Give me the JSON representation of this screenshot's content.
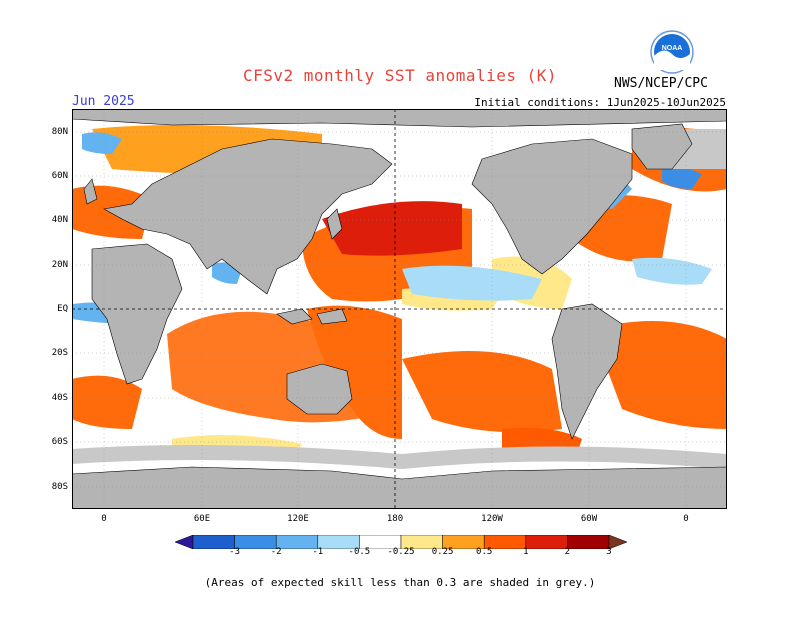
{
  "title": "CFSv2 monthly SST anomalies (K)",
  "month_label": "Jun 2025",
  "initial_conditions": "Initial conditions: 1Jun2025-10Jun2025",
  "agency": "NWS/NCEP/CPC",
  "logo_text": "NOAA",
  "footnote": "(Areas of expected skill less than 0.3 are shaded in grey.)",
  "latitude_labels": [
    "80N",
    "60N",
    "40N",
    "20N",
    "EQ",
    "20S",
    "40S",
    "60S",
    "80S"
  ],
  "longitude_labels": [
    "0",
    "60E",
    "120E",
    "180",
    "120W",
    "60W",
    "0"
  ],
  "colorbar": {
    "labels": [
      "-3",
      "-2",
      "-1",
      "-0.5",
      "-0.25",
      "0.25",
      "0.5",
      "1",
      "2",
      "3"
    ],
    "colors": [
      "#2a1a9a",
      "#1d5fcc",
      "#3a8ee6",
      "#62b3f0",
      "#a9dcf6",
      "#ffffff",
      "#ffe88a",
      "#ffa01e",
      "#ff5a00",
      "#dc1e0a",
      "#a00000",
      "#7a3520"
    ]
  },
  "colors": {
    "land": "#b4b4b4",
    "title": "#e8423a",
    "month": "#3c3cd8",
    "warm": "#ff6a0a",
    "warm_strong": "#dc1e0a",
    "cool": "#62b3f0",
    "grey_skill": "#c8c8c8"
  }
}
